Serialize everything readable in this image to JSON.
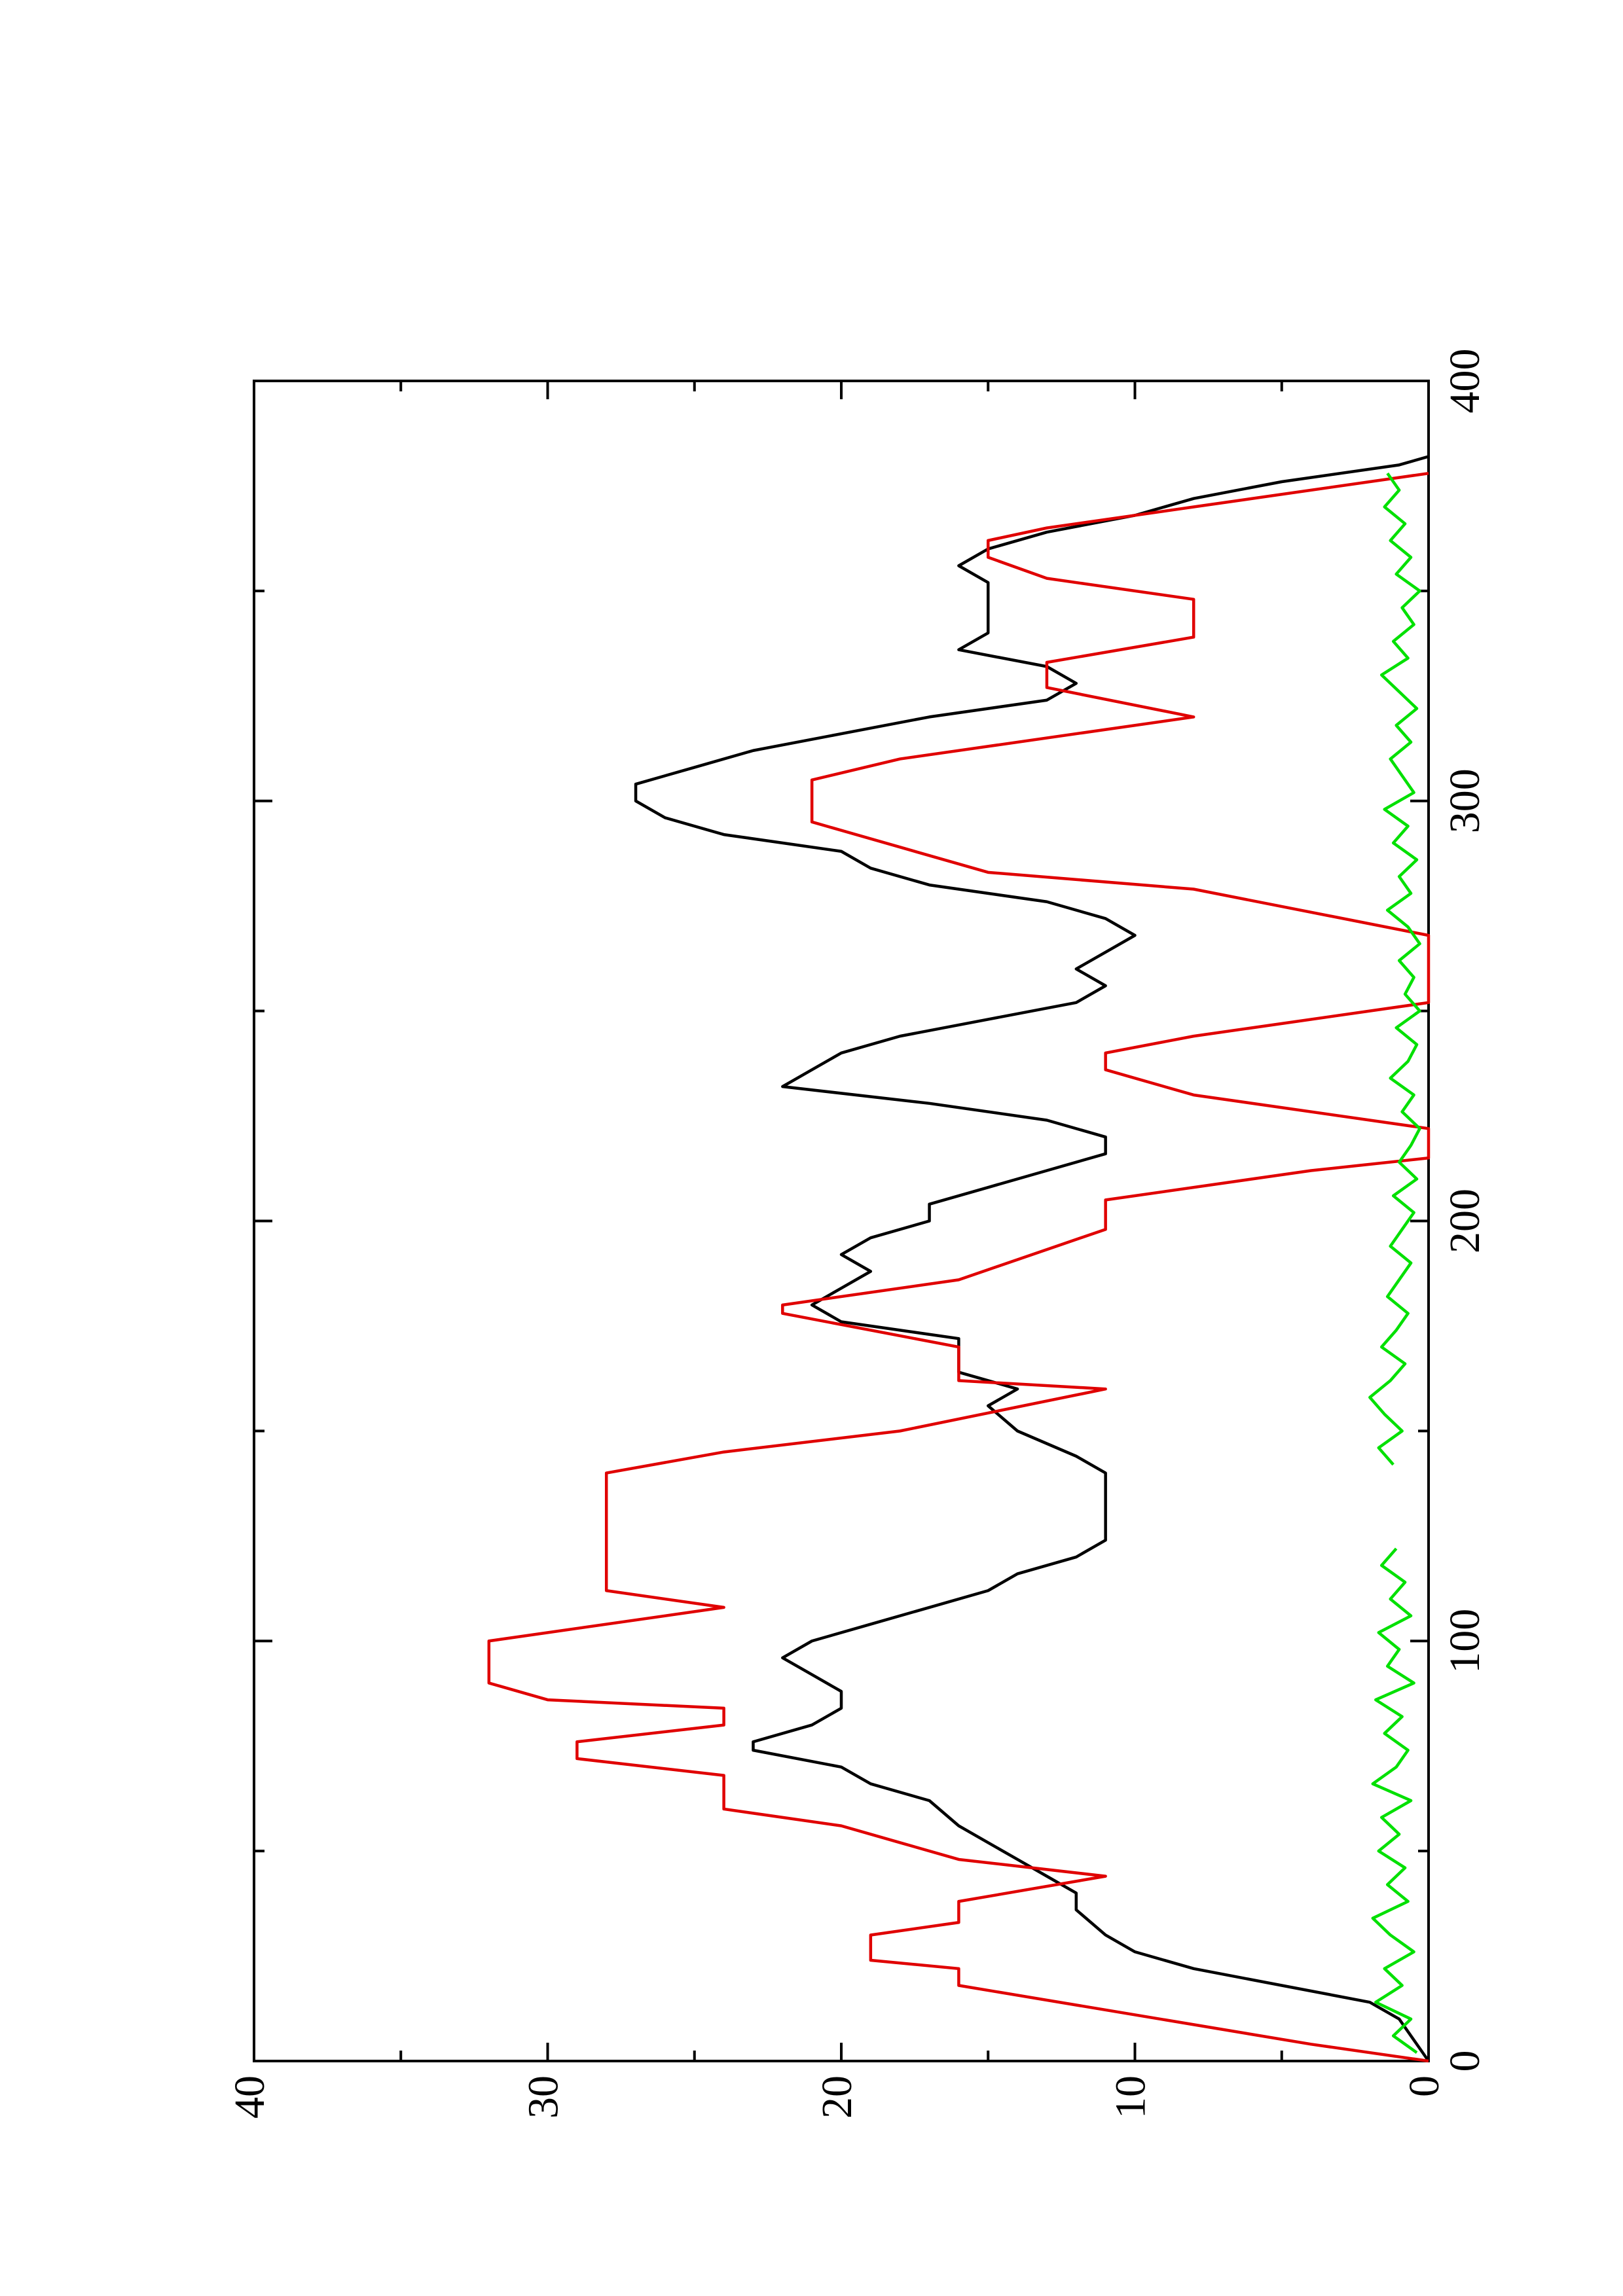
{
  "chart_data": {
    "type": "line",
    "xlim": [
      0,
      400
    ],
    "xticks": [
      0,
      100,
      200,
      300,
      400
    ],
    "ylim": [
      0,
      40
    ],
    "yticks": [
      0,
      10,
      20,
      30,
      40
    ],
    "series": [
      {
        "color": "#000000",
        "x": [
          0,
          5,
          10,
          14,
          18,
          22,
          26,
          30,
          36,
          40,
          44,
          48,
          52,
          56,
          62,
          66,
          70,
          74,
          76,
          80,
          84,
          88,
          92,
          96,
          100,
          104,
          108,
          112,
          116,
          120,
          124,
          130,
          136,
          140,
          144,
          150,
          156,
          160,
          164,
          168,
          172,
          176,
          180,
          184,
          188,
          192,
          196,
          200,
          204,
          208,
          212,
          216,
          220,
          224,
          228,
          232,
          236,
          240,
          244,
          248,
          252,
          256,
          260,
          264,
          268,
          272,
          276,
          280,
          284,
          288,
          292,
          296,
          300,
          304,
          308,
          312,
          316,
          320,
          324,
          328,
          332,
          336,
          340,
          344,
          348,
          352,
          356,
          360,
          364,
          368,
          372,
          376,
          380,
          382
        ],
        "values": [
          0,
          0.5,
          1,
          2,
          5,
          8,
          10,
          11,
          12,
          12,
          13,
          14,
          15,
          16,
          17,
          19,
          20,
          23,
          23,
          21,
          20,
          20,
          21,
          22,
          21,
          19,
          17,
          15,
          14,
          12,
          11,
          11,
          11,
          11,
          12,
          14,
          15,
          14,
          16,
          16,
          16,
          20,
          21,
          20,
          19,
          20,
          19,
          17,
          17,
          15,
          13,
          11,
          11,
          13,
          17,
          22,
          21,
          20,
          18,
          15,
          12,
          11,
          12,
          11,
          10,
          11,
          13,
          17,
          19,
          20,
          24,
          26,
          27,
          27,
          25,
          23,
          20,
          17,
          13,
          12,
          13,
          16,
          15,
          15,
          15,
          15,
          16,
          15,
          13,
          10,
          8,
          5,
          1,
          0
        ]
      },
      {
        "color": "#e00000",
        "x": [
          0,
          4,
          18,
          22,
          24,
          30,
          33,
          38,
          44,
          48,
          52,
          56,
          60,
          68,
          72,
          76,
          80,
          84,
          86,
          90,
          100,
          108,
          112,
          140,
          145,
          150,
          160,
          162,
          170,
          178,
          180,
          186,
          198,
          205,
          212,
          215,
          222,
          230,
          236,
          240,
          244,
          252,
          268,
          279,
          283,
          289,
          295,
          305,
          310,
          320,
          327,
          333,
          339,
          348,
          353,
          358,
          362,
          365,
          370,
          378
        ],
        "values": [
          0,
          4,
          16,
          16,
          19,
          19,
          16,
          16,
          11,
          16,
          18,
          20,
          24,
          24,
          29,
          29,
          24,
          24,
          30,
          32,
          32,
          24,
          28,
          28,
          24,
          18,
          11,
          16,
          16,
          22,
          22,
          16,
          11,
          11,
          4,
          0,
          0,
          8,
          11,
          11,
          8,
          0,
          0,
          8,
          15,
          18,
          21,
          21,
          18,
          8,
          13,
          13,
          8,
          8,
          13,
          15,
          15,
          13,
          8,
          0
        ]
      },
      {
        "color": "#00e000",
        "x": [
          2,
          6,
          10,
          14,
          18,
          22,
          26,
          30,
          34,
          38,
          42,
          46,
          50,
          54,
          58,
          62,
          66,
          70,
          74,
          78,
          82,
          86,
          90,
          94,
          98,
          102,
          106,
          110,
          114,
          118,
          122,
          126,
          130,
          134,
          138,
          142,
          146,
          150,
          154,
          158,
          162,
          166,
          170,
          174,
          178,
          182,
          186,
          190,
          194,
          198,
          202,
          206,
          210,
          214,
          218,
          222,
          226,
          230,
          234,
          238,
          242,
          246,
          250,
          254,
          258,
          262,
          266,
          270,
          274,
          278,
          282,
          286,
          290,
          294,
          298,
          302,
          306,
          310,
          314,
          318,
          322,
          326,
          330,
          334,
          338,
          342,
          346,
          350,
          354,
          358,
          362,
          366,
          370,
          374,
          378
        ],
        "values": [
          0.4,
          1.2,
          0.6,
          1.8,
          0.9,
          1.5,
          0.5,
          1.3,
          1.9,
          0.7,
          1.4,
          0.8,
          1.7,
          1.0,
          1.6,
          0.6,
          1.9,
          1.1,
          0.7,
          1.5,
          0.9,
          1.8,
          0.5,
          1.4,
          1.0,
          1.7,
          0.6,
          1.3,
          0.8,
          1.6,
          1.1,
          null,
          null,
          null,
          null,
          1.2,
          1.7,
          0.9,
          1.5,
          2.0,
          1.3,
          0.8,
          1.6,
          1.1,
          0.7,
          1.4,
          1.0,
          0.6,
          1.3,
          0.9,
          0.5,
          1.2,
          0.4,
          1.0,
          0.6,
          0.3,
          0.9,
          0.5,
          1.3,
          0.7,
          0.4,
          1.1,
          0.3,
          0.8,
          0.5,
          1.0,
          0.3,
          0.7,
          1.4,
          0.6,
          1.0,
          0.4,
          1.2,
          0.7,
          1.5,
          0.5,
          0.9,
          1.3,
          0.6,
          1.1,
          0.4,
          1.0,
          1.6,
          0.7,
          1.2,
          0.5,
          0.9,
          0.3,
          1.1,
          0.6,
          1.3,
          0.8,
          1.5,
          1.0,
          1.4
        ]
      }
    ]
  }
}
